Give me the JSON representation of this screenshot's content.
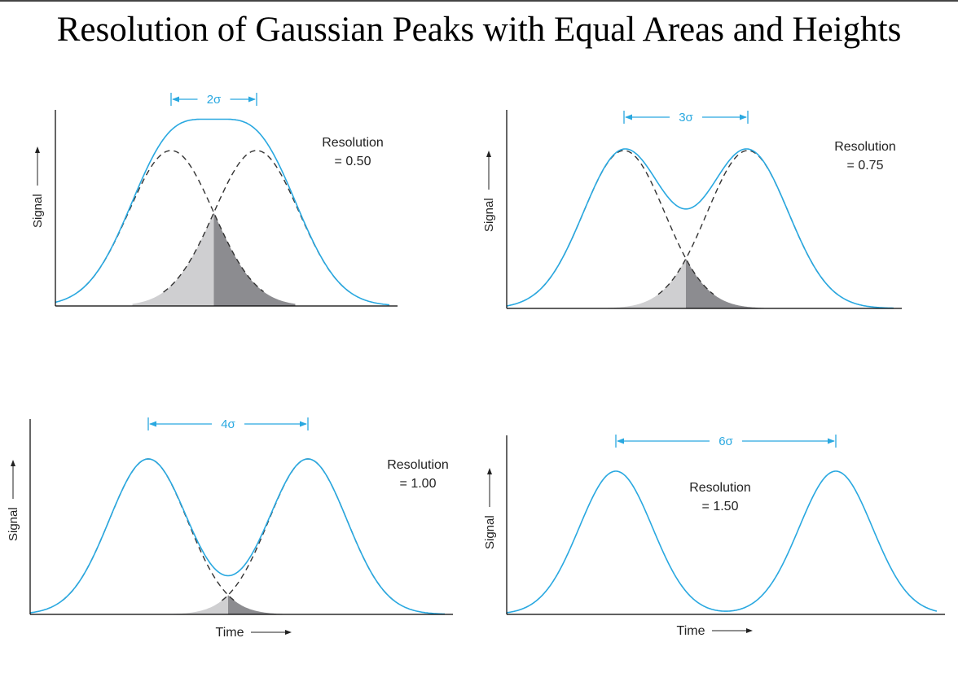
{
  "title": "Resolution of Gaussian Peaks with Equal Areas and Heights",
  "colors": {
    "curve": "#29a8e0",
    "axis": "#000000",
    "dashed": "#333333",
    "overlap_left": "#cfcfd1",
    "overlap_right": "#8c8c90",
    "dimension": "#29a8e0",
    "text": "#222222"
  },
  "panels": [
    {
      "id": "r050",
      "separation_label": "2σ",
      "separation_sigma": 2,
      "resolution_label": "Resolution",
      "resolution_value": "= 0.50",
      "y_label": "Signal",
      "x_label": ""
    },
    {
      "id": "r075",
      "separation_label": "3σ",
      "separation_sigma": 3,
      "resolution_label": "Resolution",
      "resolution_value": "= 0.75",
      "y_label": "Signal",
      "x_label": ""
    },
    {
      "id": "r100",
      "separation_label": "4σ",
      "separation_sigma": 4,
      "resolution_label": "Resolution",
      "resolution_value": "= 1.00",
      "y_label": "Signal",
      "x_label": "Time"
    },
    {
      "id": "r150",
      "separation_label": "6σ",
      "separation_sigma": 6,
      "resolution_label": "Resolution",
      "resolution_value": "= 1.50",
      "y_label": "Signal",
      "x_label": "Time"
    }
  ]
}
